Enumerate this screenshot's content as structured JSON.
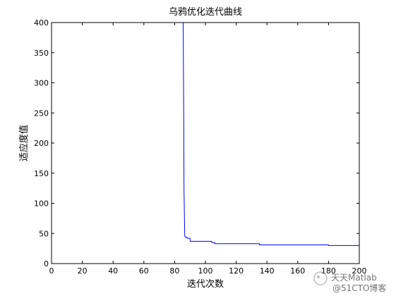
{
  "chart_data": {
    "type": "line",
    "title": "乌鸦优化迭代曲线",
    "xlabel": "迭代次数",
    "ylabel": "适应度值",
    "xlim": [
      0,
      200
    ],
    "ylim": [
      0,
      400
    ],
    "xticks": [
      0,
      20,
      40,
      60,
      80,
      100,
      120,
      140,
      160,
      180,
      200
    ],
    "yticks": [
      0,
      50,
      100,
      150,
      200,
      250,
      300,
      350,
      400
    ],
    "grid": false,
    "series": [
      {
        "color": "#0000ff",
        "x": [
          85.5,
          85.6,
          85.7,
          85.9,
          86,
          86.1,
          86.3,
          86.4,
          86.6,
          87,
          88,
          88.1,
          90,
          90.1,
          104,
          104.1,
          106,
          106.1,
          135,
          135.1,
          180,
          180.1,
          200
        ],
        "y": [
          400,
          380,
          330,
          250,
          170,
          120,
          90,
          70,
          45,
          44,
          44,
          42,
          42,
          37,
          37,
          35,
          35,
          33,
          33,
          31,
          31,
          30,
          30
        ]
      }
    ]
  },
  "watermark": {
    "line1": "天天Matlab",
    "line2": "@51CTO博客"
  }
}
